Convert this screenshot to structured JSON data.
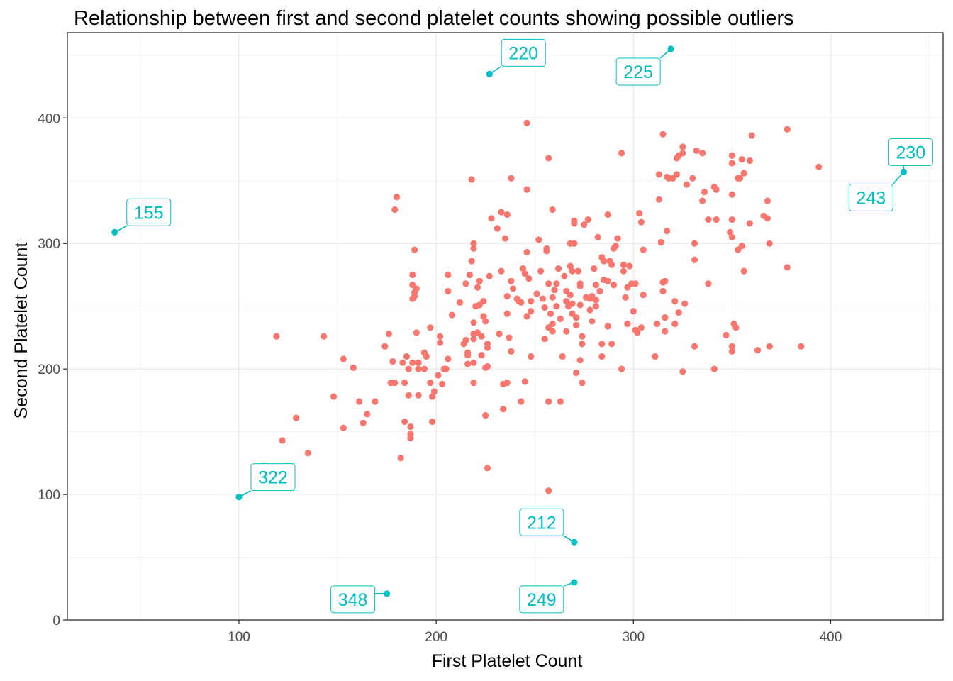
{
  "chart_data": {
    "type": "scatter",
    "title": "Relationship between first and second platelet counts showing possible outliers",
    "xlabel": "First Platelet Count",
    "ylabel": "Second Platelet Count",
    "xlim": [
      13,
      457
    ],
    "ylim": [
      0,
      468
    ],
    "xticks": [
      100,
      200,
      300,
      400
    ],
    "yticks": [
      0,
      100,
      200,
      300,
      400
    ],
    "grid": true,
    "legend": "none",
    "colors": {
      "normal": "#F8766D",
      "outlier": "#00BFC4"
    },
    "series": [
      {
        "points": [
          [
            119,
            226
          ],
          [
            122,
            143
          ],
          [
            129,
            161
          ],
          [
            135,
            133
          ],
          [
            143,
            226
          ],
          [
            148,
            178
          ],
          [
            153,
            153
          ],
          [
            153,
            208
          ],
          [
            158,
            201
          ],
          [
            161,
            174
          ],
          [
            163,
            157
          ],
          [
            165,
            164
          ],
          [
            169,
            174
          ],
          [
            174,
            218
          ],
          [
            176,
            228
          ],
          [
            177,
            189
          ],
          [
            178,
            206
          ],
          [
            179,
            327
          ],
          [
            179,
            189
          ],
          [
            180,
            337
          ],
          [
            182,
            129
          ],
          [
            183,
            205
          ],
          [
            184,
            158
          ],
          [
            184,
            189
          ],
          [
            185,
            210
          ],
          [
            186,
            179
          ],
          [
            186,
            200
          ],
          [
            187,
            154
          ],
          [
            187,
            148
          ],
          [
            187,
            145
          ],
          [
            188,
            205
          ],
          [
            188,
            275
          ],
          [
            188,
            267
          ],
          [
            188,
            256
          ],
          [
            189,
            258
          ],
          [
            189,
            261
          ],
          [
            189,
            295
          ],
          [
            190,
            264
          ],
          [
            190,
            229
          ],
          [
            191,
            205
          ],
          [
            191,
            179
          ],
          [
            191,
            200
          ],
          [
            194,
            200
          ],
          [
            194,
            213
          ],
          [
            195,
            210
          ],
          [
            197,
            189
          ],
          [
            197,
            233
          ],
          [
            198,
            178
          ],
          [
            198,
            158
          ],
          [
            199,
            182
          ],
          [
            201,
            195
          ],
          [
            202,
            226
          ],
          [
            202,
            221
          ],
          [
            203,
            188
          ],
          [
            204,
            200
          ],
          [
            205,
            200
          ],
          [
            206,
            275
          ],
          [
            206,
            208
          ],
          [
            206,
            262
          ],
          [
            208,
            243
          ],
          [
            212,
            253
          ],
          [
            214,
            220
          ],
          [
            215,
            223
          ],
          [
            215,
            268
          ],
          [
            216,
            204
          ],
          [
            216,
            213
          ],
          [
            216,
            211
          ],
          [
            217,
            275
          ],
          [
            218,
            351
          ],
          [
            218,
            286
          ],
          [
            219,
            300
          ],
          [
            219,
            296
          ],
          [
            219,
            237
          ],
          [
            219,
            228
          ],
          [
            219,
            224
          ],
          [
            219,
            205
          ],
          [
            219,
            189
          ],
          [
            220,
            250
          ],
          [
            221,
            265
          ],
          [
            221,
            229
          ],
          [
            222,
            270
          ],
          [
            222,
            251
          ],
          [
            223,
            226
          ],
          [
            223,
            211
          ],
          [
            224,
            254
          ],
          [
            224,
            242
          ],
          [
            225,
            163
          ],
          [
            225,
            201
          ],
          [
            225,
            238
          ],
          [
            226,
            220
          ],
          [
            226,
            202
          ],
          [
            226,
            217
          ],
          [
            226,
            121
          ],
          [
            227,
            274
          ],
          [
            228,
            320
          ],
          [
            231,
            312
          ],
          [
            232,
            228
          ],
          [
            233,
            325
          ],
          [
            233,
            278
          ],
          [
            234,
            168
          ],
          [
            234,
            188
          ],
          [
            235,
            304
          ],
          [
            236,
            258
          ],
          [
            236,
            244
          ],
          [
            236,
            189
          ],
          [
            236,
            323
          ],
          [
            237,
            225
          ],
          [
            238,
            214
          ],
          [
            238,
            352
          ],
          [
            238,
            270
          ],
          [
            239,
            264
          ],
          [
            241,
            256
          ],
          [
            242,
            254
          ],
          [
            243,
            253
          ],
          [
            243,
            174
          ],
          [
            244,
            280
          ],
          [
            245,
            190
          ],
          [
            245,
            276
          ],
          [
            246,
            242
          ],
          [
            246,
            343
          ],
          [
            246,
            396
          ],
          [
            246,
            293
          ],
          [
            247,
            272
          ],
          [
            248,
            210
          ],
          [
            248,
            246
          ],
          [
            248,
            254
          ],
          [
            251,
            260
          ],
          [
            252,
            303
          ],
          [
            253,
            278
          ],
          [
            254,
            256
          ],
          [
            255,
            249
          ],
          [
            255,
            224
          ],
          [
            256,
            296
          ],
          [
            256,
            294
          ],
          [
            257,
            103
          ],
          [
            257,
            268
          ],
          [
            257,
            233
          ],
          [
            257,
            174
          ],
          [
            257,
            368
          ],
          [
            258,
            244
          ],
          [
            259,
            327
          ],
          [
            259,
            257
          ],
          [
            259,
            236
          ],
          [
            259,
            230
          ],
          [
            260,
            263
          ],
          [
            261,
            250
          ],
          [
            261,
            268
          ],
          [
            262,
            280
          ],
          [
            263,
            174
          ],
          [
            263,
            240
          ],
          [
            264,
            210
          ],
          [
            265,
            274
          ],
          [
            266,
            262
          ],
          [
            266,
            254
          ],
          [
            266,
            230
          ],
          [
            267,
            250
          ],
          [
            268,
            282
          ],
          [
            268,
            300
          ],
          [
            268,
            259
          ],
          [
            269,
            278
          ],
          [
            269,
            252
          ],
          [
            269,
            244
          ],
          [
            270,
            318
          ],
          [
            270,
            316
          ],
          [
            270,
            300
          ],
          [
            271,
            241
          ],
          [
            271,
            235
          ],
          [
            271,
            197
          ],
          [
            272,
            278
          ],
          [
            273,
            251
          ],
          [
            273,
            268
          ],
          [
            273,
            266
          ],
          [
            273,
            207
          ],
          [
            274,
            226
          ],
          [
            274,
            220
          ],
          [
            274,
            189
          ],
          [
            275,
            315
          ],
          [
            276,
            257
          ],
          [
            277,
            319
          ],
          [
            278,
            256
          ],
          [
            278,
            247
          ],
          [
            279,
            238
          ],
          [
            279,
            258
          ],
          [
            280,
            280
          ],
          [
            281,
            255
          ],
          [
            281,
            267
          ],
          [
            281,
            250
          ],
          [
            282,
            305
          ],
          [
            283,
            262
          ],
          [
            284,
            289
          ],
          [
            284,
            210
          ],
          [
            284,
            220
          ],
          [
            285,
            271
          ],
          [
            285,
            286
          ],
          [
            287,
            323
          ],
          [
            287,
            234
          ],
          [
            287,
            270
          ],
          [
            288,
            286
          ],
          [
            289,
            220
          ],
          [
            289,
            283
          ],
          [
            290,
            267
          ],
          [
            290,
            296
          ],
          [
            291,
            298
          ],
          [
            292,
            304
          ],
          [
            294,
            200
          ],
          [
            294,
            372
          ],
          [
            295,
            283
          ],
          [
            295,
            278
          ],
          [
            296,
            257
          ],
          [
            297,
            236
          ],
          [
            297,
            265
          ],
          [
            298,
            282
          ],
          [
            299,
            268
          ],
          [
            300,
            246
          ],
          [
            301,
            268
          ],
          [
            301,
            231
          ],
          [
            302,
            229
          ],
          [
            303,
            324
          ],
          [
            304,
            317
          ],
          [
            304,
            233
          ],
          [
            305,
            295
          ],
          [
            305,
            259
          ],
          [
            311,
            210
          ],
          [
            312,
            236
          ],
          [
            313,
            355
          ],
          [
            313,
            335
          ],
          [
            314,
            301
          ],
          [
            315,
            387
          ],
          [
            315,
            269
          ],
          [
            315,
            262
          ],
          [
            316,
            270
          ],
          [
            316,
            230
          ],
          [
            316,
            241
          ],
          [
            317,
            353
          ],
          [
            317,
            310
          ],
          [
            318,
            352
          ],
          [
            320,
            352
          ],
          [
            321,
            254
          ],
          [
            321,
            236
          ],
          [
            322,
            355
          ],
          [
            322,
            368
          ],
          [
            323,
            370
          ],
          [
            323,
            245
          ],
          [
            325,
            372
          ],
          [
            325,
            377
          ],
          [
            325,
            198
          ],
          [
            326,
            252
          ],
          [
            327,
            347
          ],
          [
            330,
            352
          ],
          [
            331,
            287
          ],
          [
            331,
            300
          ],
          [
            331,
            218
          ],
          [
            332,
            374
          ],
          [
            335,
            334
          ],
          [
            335,
            372
          ],
          [
            336,
            341
          ],
          [
            338,
            268
          ],
          [
            338,
            319
          ],
          [
            341,
            200
          ],
          [
            341,
            345
          ],
          [
            342,
            319
          ],
          [
            342,
            343
          ],
          [
            347,
            227
          ],
          [
            349,
            309
          ],
          [
            350,
            370
          ],
          [
            350,
            364
          ],
          [
            350,
            339
          ],
          [
            350,
            319
          ],
          [
            350,
            305
          ],
          [
            350,
            218
          ],
          [
            350,
            214
          ],
          [
            351,
            236
          ],
          [
            352,
            233
          ],
          [
            353,
            352
          ],
          [
            353,
            295
          ],
          [
            354,
            352
          ],
          [
            355,
            367
          ],
          [
            355,
            298
          ],
          [
            356,
            278
          ],
          [
            356,
            356
          ],
          [
            359,
            316
          ],
          [
            359,
            366
          ],
          [
            360,
            386
          ],
          [
            363,
            215
          ],
          [
            366,
            322
          ],
          [
            368,
            320
          ],
          [
            368,
            334
          ],
          [
            369,
            218
          ],
          [
            369,
            300
          ],
          [
            378,
            281
          ],
          [
            378,
            391
          ],
          [
            385,
            218
          ],
          [
            394,
            361
          ]
        ]
      },
      {
        "points": [
          [
            37,
            309,
            "155"
          ],
          [
            100,
            98,
            "322"
          ],
          [
            175,
            21,
            "348"
          ],
          [
            227,
            435,
            "220"
          ],
          [
            270,
            62,
            "212"
          ],
          [
            270,
            30,
            "249"
          ],
          [
            319,
            455,
            "225"
          ],
          [
            437,
            357,
            "243"
          ],
          [
            437,
            357,
            "230"
          ]
        ]
      }
    ]
  }
}
